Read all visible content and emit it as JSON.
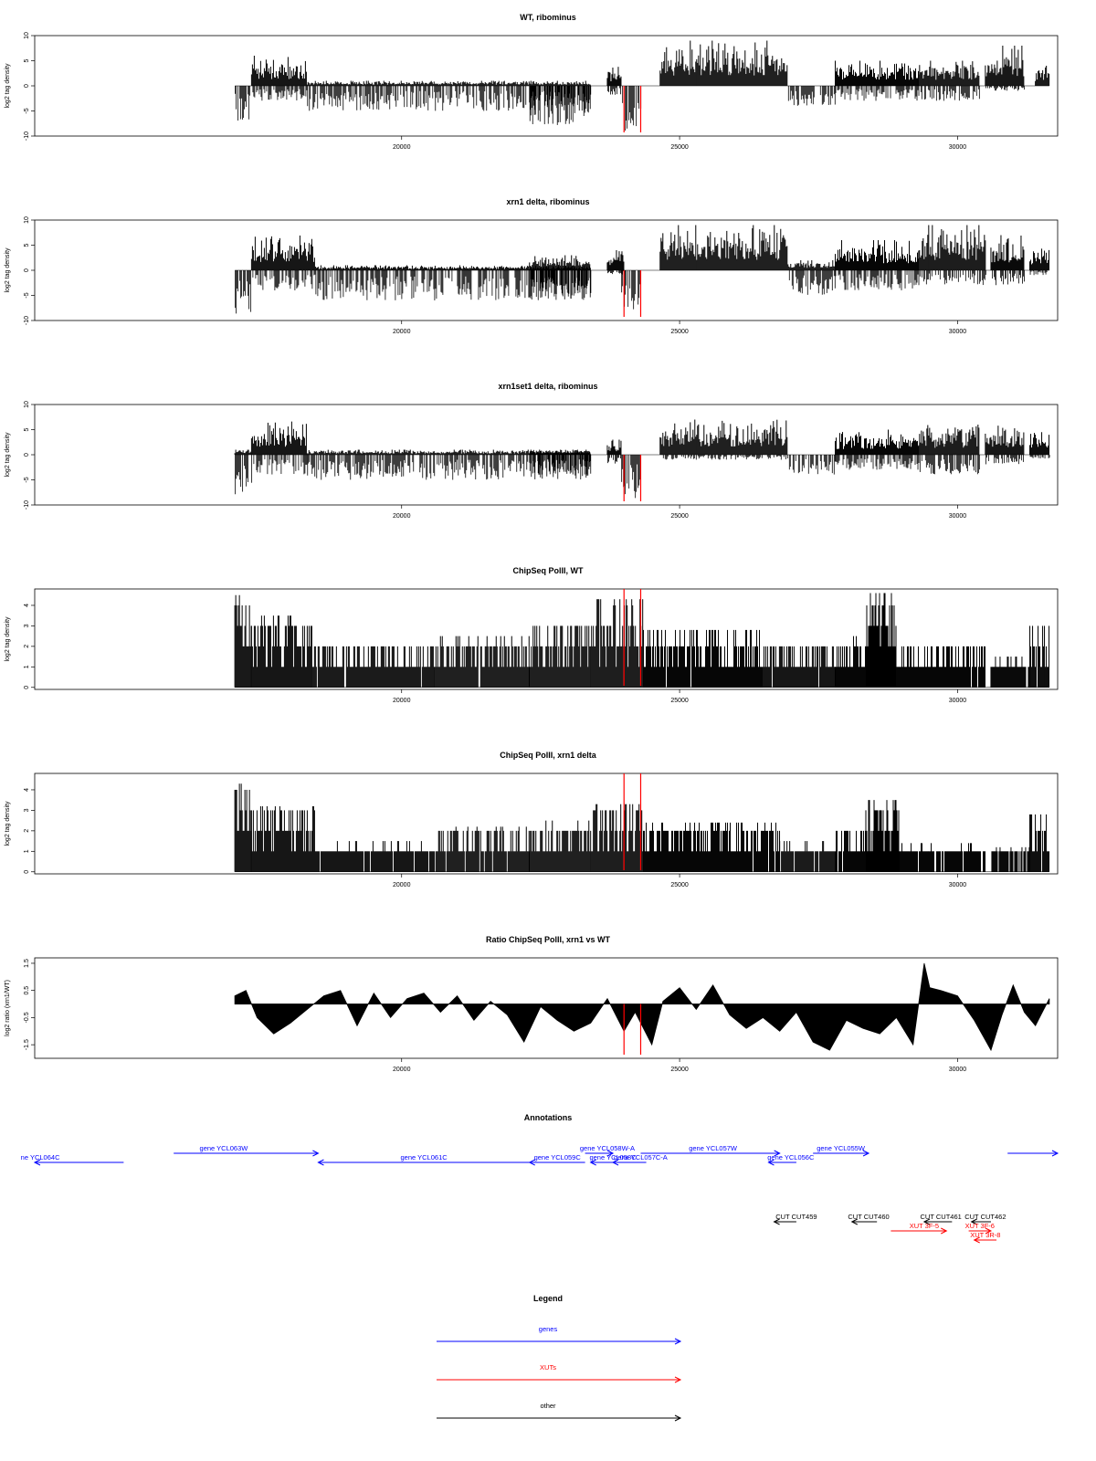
{
  "colors": {
    "genes": "#0000ff",
    "xuts": "#ff0000",
    "other": "#000000",
    "marker": "#ff0000",
    "data": "#000000"
  },
  "chart_data": [
    {
      "type": "bar",
      "title": "WT, ribominus",
      "ylabel": "log2 tag density",
      "xlim": [
        13400,
        31800
      ],
      "xticks": [
        20000,
        25000,
        30000
      ],
      "ylim": [
        -10,
        10
      ],
      "yticks": [
        -10,
        -5,
        0,
        5,
        10
      ],
      "markers": [
        24000,
        24300
      ],
      "segments": [
        {
          "from": 17000,
          "to": 17300,
          "min": -7,
          "max": 0
        },
        {
          "from": 17300,
          "to": 18300,
          "min": -3,
          "max": 6
        },
        {
          "from": 18300,
          "to": 23400,
          "min": -5,
          "max": 1
        },
        {
          "from": 22300,
          "to": 23400,
          "min": -8,
          "max": 0
        },
        {
          "from": 23700,
          "to": 23950,
          "min": -2,
          "max": 4
        },
        {
          "from": 23950,
          "to": 24300,
          "min": -9,
          "max": 0
        },
        {
          "from": 24650,
          "to": 26950,
          "min": 0,
          "max": 9
        },
        {
          "from": 26950,
          "to": 27800,
          "min": -4,
          "max": 0
        },
        {
          "from": 27800,
          "to": 29300,
          "min": -3,
          "max": 5
        },
        {
          "from": 29300,
          "to": 30400,
          "min": -3,
          "max": 5
        },
        {
          "from": 30500,
          "to": 31200,
          "min": -1,
          "max": 8
        },
        {
          "from": 31400,
          "to": 31650,
          "min": 0,
          "max": 4
        }
      ]
    },
    {
      "type": "bar",
      "title": "xrn1 delta, ribominus",
      "ylabel": "log2 tag density",
      "xlim": [
        13400,
        31800
      ],
      "xticks": [
        20000,
        25000,
        30000
      ],
      "ylim": [
        -10,
        10
      ],
      "yticks": [
        -10,
        -5,
        0,
        5,
        10
      ],
      "markers": [
        24000,
        24300
      ],
      "segments": [
        {
          "from": 17000,
          "to": 17300,
          "min": -9,
          "max": 0
        },
        {
          "from": 17300,
          "to": 18450,
          "min": -4,
          "max": 7
        },
        {
          "from": 18450,
          "to": 23400,
          "min": -6,
          "max": 1
        },
        {
          "from": 22300,
          "to": 23400,
          "min": -6,
          "max": 3
        },
        {
          "from": 23700,
          "to": 24000,
          "min": -1,
          "max": 4
        },
        {
          "from": 23950,
          "to": 24300,
          "min": -8,
          "max": 0
        },
        {
          "from": 24650,
          "to": 26950,
          "min": 0,
          "max": 9
        },
        {
          "from": 26950,
          "to": 27800,
          "min": -5,
          "max": 2
        },
        {
          "from": 27800,
          "to": 29300,
          "min": -4,
          "max": 6
        },
        {
          "from": 29300,
          "to": 30500,
          "min": -3,
          "max": 9
        },
        {
          "from": 30600,
          "to": 31200,
          "min": -3,
          "max": 7
        },
        {
          "from": 31300,
          "to": 31650,
          "min": -1,
          "max": 5
        }
      ]
    },
    {
      "type": "bar",
      "title": "xrn1set1 delta, ribominus",
      "ylabel": "log2 tag density",
      "xlim": [
        13400,
        31800
      ],
      "xticks": [
        20000,
        25000,
        30000
      ],
      "ylim": [
        -10,
        10
      ],
      "yticks": [
        -10,
        -5,
        0,
        5,
        10
      ],
      "markers": [
        24000,
        24300
      ],
      "segments": [
        {
          "from": 17000,
          "to": 17300,
          "min": -8,
          "max": 1
        },
        {
          "from": 17300,
          "to": 18300,
          "min": -4,
          "max": 7
        },
        {
          "from": 18300,
          "to": 23400,
          "min": -5,
          "max": 1
        },
        {
          "from": 22300,
          "to": 23400,
          "min": -4,
          "max": 1
        },
        {
          "from": 23700,
          "to": 23950,
          "min": -2,
          "max": 3
        },
        {
          "from": 23950,
          "to": 24300,
          "min": -9,
          "max": 0
        },
        {
          "from": 24650,
          "to": 26950,
          "min": -1,
          "max": 7
        },
        {
          "from": 26950,
          "to": 27800,
          "min": -4,
          "max": 0
        },
        {
          "from": 27800,
          "to": 29300,
          "min": -3,
          "max": 5
        },
        {
          "from": 29300,
          "to": 30400,
          "min": -4,
          "max": 6
        },
        {
          "from": 30500,
          "to": 31200,
          "min": -2,
          "max": 6
        },
        {
          "from": 31300,
          "to": 31650,
          "min": -1,
          "max": 5
        }
      ]
    },
    {
      "type": "bar",
      "title": "ChipSeq PolII, WT",
      "ylabel": "log2 tag density",
      "xlim": [
        13400,
        31800
      ],
      "xticks": [
        20000,
        25000,
        30000
      ],
      "ylim": [
        -0.1,
        4.8
      ],
      "yticks": [
        0,
        1,
        2,
        3,
        4
      ],
      "markers": [
        24000,
        24300
      ],
      "segments": [
        {
          "from": 17000,
          "to": 17300,
          "min": 0,
          "max": 4.5
        },
        {
          "from": 17300,
          "to": 18400,
          "min": 0,
          "max": 3.5
        },
        {
          "from": 18400,
          "to": 20600,
          "min": 0,
          "max": 2.0
        },
        {
          "from": 20600,
          "to": 22300,
          "min": 0,
          "max": 2.5
        },
        {
          "from": 22300,
          "to": 23400,
          "min": 0,
          "max": 3.0
        },
        {
          "from": 23400,
          "to": 24350,
          "min": 0,
          "max": 4.3
        },
        {
          "from": 24350,
          "to": 26500,
          "min": 0,
          "max": 2.8
        },
        {
          "from": 26500,
          "to": 27800,
          "min": 0,
          "max": 2.0
        },
        {
          "from": 27800,
          "to": 28350,
          "min": 0,
          "max": 2.5
        },
        {
          "from": 28350,
          "to": 28900,
          "min": 0,
          "max": 4.6
        },
        {
          "from": 28900,
          "to": 30500,
          "min": 0,
          "max": 2.0
        },
        {
          "from": 30600,
          "to": 31300,
          "min": 0,
          "max": 1.5
        },
        {
          "from": 31300,
          "to": 31650,
          "min": 0,
          "max": 3.0
        }
      ]
    },
    {
      "type": "bar",
      "title": "ChipSeq PolII, xrn1 delta",
      "ylabel": "log2 tag density",
      "xlim": [
        13400,
        31800
      ],
      "xticks": [
        20000,
        25000,
        30000
      ],
      "ylim": [
        -0.1,
        4.8
      ],
      "yticks": [
        0,
        1,
        2,
        3,
        4
      ],
      "markers": [
        24000,
        24300
      ],
      "segments": [
        {
          "from": 17000,
          "to": 17300,
          "min": 0,
          "max": 4.3
        },
        {
          "from": 17300,
          "to": 18450,
          "min": 0,
          "max": 3.2
        },
        {
          "from": 18450,
          "to": 20600,
          "min": 0,
          "max": 1.5
        },
        {
          "from": 20600,
          "to": 22300,
          "min": 0,
          "max": 2.2
        },
        {
          "from": 22300,
          "to": 23400,
          "min": 0,
          "max": 2.5
        },
        {
          "from": 23400,
          "to": 24350,
          "min": 0,
          "max": 3.3
        },
        {
          "from": 24350,
          "to": 26800,
          "min": 0,
          "max": 2.4
        },
        {
          "from": 26800,
          "to": 27800,
          "min": 0,
          "max": 1.5
        },
        {
          "from": 27800,
          "to": 28350,
          "min": 0,
          "max": 2.0
        },
        {
          "from": 28350,
          "to": 28950,
          "min": 0,
          "max": 3.5
        },
        {
          "from": 28950,
          "to": 30500,
          "min": 0,
          "max": 1.4
        },
        {
          "from": 30600,
          "to": 31300,
          "min": 0,
          "max": 1.2
        },
        {
          "from": 31300,
          "to": 31650,
          "min": 0,
          "max": 2.8
        }
      ]
    },
    {
      "type": "area",
      "title": "Ratio ChipSeq PolII, xrn1 vs WT",
      "ylabel": "log2 ratio (xrn1/WT)",
      "xlim": [
        13400,
        31800
      ],
      "xticks": [
        20000,
        25000,
        30000
      ],
      "ylim": [
        -2.0,
        1.7
      ],
      "yticks": [
        -1.5,
        -0.5,
        0.5,
        1.5
      ],
      "markers": [
        24000,
        24300
      ],
      "x": [
        17000,
        17200,
        17400,
        17700,
        18000,
        18300,
        18600,
        18900,
        19200,
        19500,
        19800,
        20100,
        20400,
        20700,
        21000,
        21300,
        21600,
        21900,
        22200,
        22500,
        22800,
        23100,
        23400,
        23700,
        24000,
        24200,
        24500,
        24700,
        25000,
        25300,
        25600,
        25900,
        26200,
        26500,
        26800,
        27100,
        27400,
        27700,
        28000,
        28300,
        28600,
        28900,
        29200,
        29400,
        29500,
        29700,
        30000,
        30300,
        30600,
        30800,
        31000,
        31200,
        31400,
        31650
      ],
      "y": [
        0.3,
        0.5,
        -0.5,
        -1.1,
        -0.7,
        -0.2,
        0.3,
        0.5,
        -0.8,
        0.4,
        -0.5,
        0.2,
        0.4,
        -0.3,
        0.3,
        -0.6,
        0.1,
        -0.4,
        -1.4,
        -0.1,
        -0.6,
        -1.0,
        -0.7,
        0.2,
        -1.0,
        -0.3,
        -1.5,
        0.1,
        0.6,
        -0.2,
        0.7,
        -0.4,
        -0.9,
        -0.5,
        -1.0,
        -0.3,
        -1.4,
        -1.7,
        -0.6,
        -0.9,
        -1.1,
        -0.5,
        -1.5,
        1.5,
        0.6,
        0.5,
        0.3,
        -0.6,
        -1.7,
        -0.4,
        0.7,
        -0.3,
        -0.8,
        0.2
      ]
    }
  ],
  "annotations": {
    "title": "Annotations",
    "features": [
      {
        "label": "ne YCL064C",
        "kind": "gene",
        "start": 13400,
        "end": 15000,
        "strand": "-",
        "row": 1,
        "lx": 13500
      },
      {
        "label": "gene YCL063W",
        "kind": "gene",
        "start": 15900,
        "end": 18500,
        "strand": "+",
        "row": 0,
        "lx": 16800
      },
      {
        "label": "gene YCL061C",
        "kind": "gene",
        "start": 18500,
        "end": 22300,
        "strand": "-",
        "row": 1,
        "lx": 20400
      },
      {
        "label": "gene YCL059C",
        "kind": "gene",
        "start": 22300,
        "end": 23300,
        "strand": "-",
        "row": 1,
        "lx": 22800
      },
      {
        "label": "gene YCL058W-A",
        "kind": "gene",
        "start": 23300,
        "end": 23800,
        "strand": "+",
        "row": 0,
        "lx": 23700
      },
      {
        "label": "gene YCL058C",
        "kind": "gene",
        "start": 23400,
        "end": 23800,
        "strand": "-",
        "row": 1,
        "lx": 23800
      },
      {
        "label": "gene YCL057C-A",
        "kind": "gene",
        "start": 23800,
        "end": 24400,
        "strand": "-",
        "row": 1,
        "lx": 24300
      },
      {
        "label": "gene YCL057W",
        "kind": "gene",
        "start": 24300,
        "end": 26800,
        "strand": "+",
        "row": 0,
        "lx": 25600
      },
      {
        "label": "gene YCL056C",
        "kind": "gene",
        "start": 26600,
        "end": 27100,
        "strand": "-",
        "row": 1,
        "lx": 27000
      },
      {
        "label": "gene YCL055W",
        "kind": "gene",
        "start": 27400,
        "end": 28400,
        "strand": "+",
        "row": 0,
        "lx": 27900
      },
      {
        "label": "",
        "kind": "gene",
        "start": 30900,
        "end": 31800,
        "strand": "+",
        "row": 0,
        "lx": 31300
      },
      {
        "label": "CUT CUT459",
        "kind": "other",
        "start": 26700,
        "end": 27100,
        "strand": "-",
        "row": 3,
        "lx": 27100
      },
      {
        "label": "CUT CUT460",
        "kind": "other",
        "start": 28100,
        "end": 28550,
        "strand": "-",
        "row": 3,
        "lx": 28400
      },
      {
        "label": "CUT CUT461",
        "kind": "other",
        "start": 29400,
        "end": 29900,
        "strand": "-",
        "row": 3,
        "lx": 29700
      },
      {
        "label": "CUT CUT462",
        "kind": "other",
        "start": 30250,
        "end": 30600,
        "strand": "-",
        "row": 3,
        "lx": 30500
      },
      {
        "label": "XUT 3F-5",
        "kind": "xut",
        "start": 28800,
        "end": 29800,
        "strand": "+",
        "row": 4,
        "lx": 29400
      },
      {
        "label": "XUT 3F-6",
        "kind": "xut",
        "start": 30200,
        "end": 30600,
        "strand": "+",
        "row": 4,
        "lx": 30400
      },
      {
        "label": "XUT 3R-8",
        "kind": "xut",
        "start": 30300,
        "end": 30700,
        "strand": "-",
        "row": 5,
        "lx": 30500
      }
    ]
  },
  "legend": {
    "title": "Legend",
    "items": [
      {
        "label": "genes",
        "color": "#0000ff"
      },
      {
        "label": "XUTs",
        "color": "#ff0000"
      },
      {
        "label": "other",
        "color": "#000000"
      }
    ]
  }
}
